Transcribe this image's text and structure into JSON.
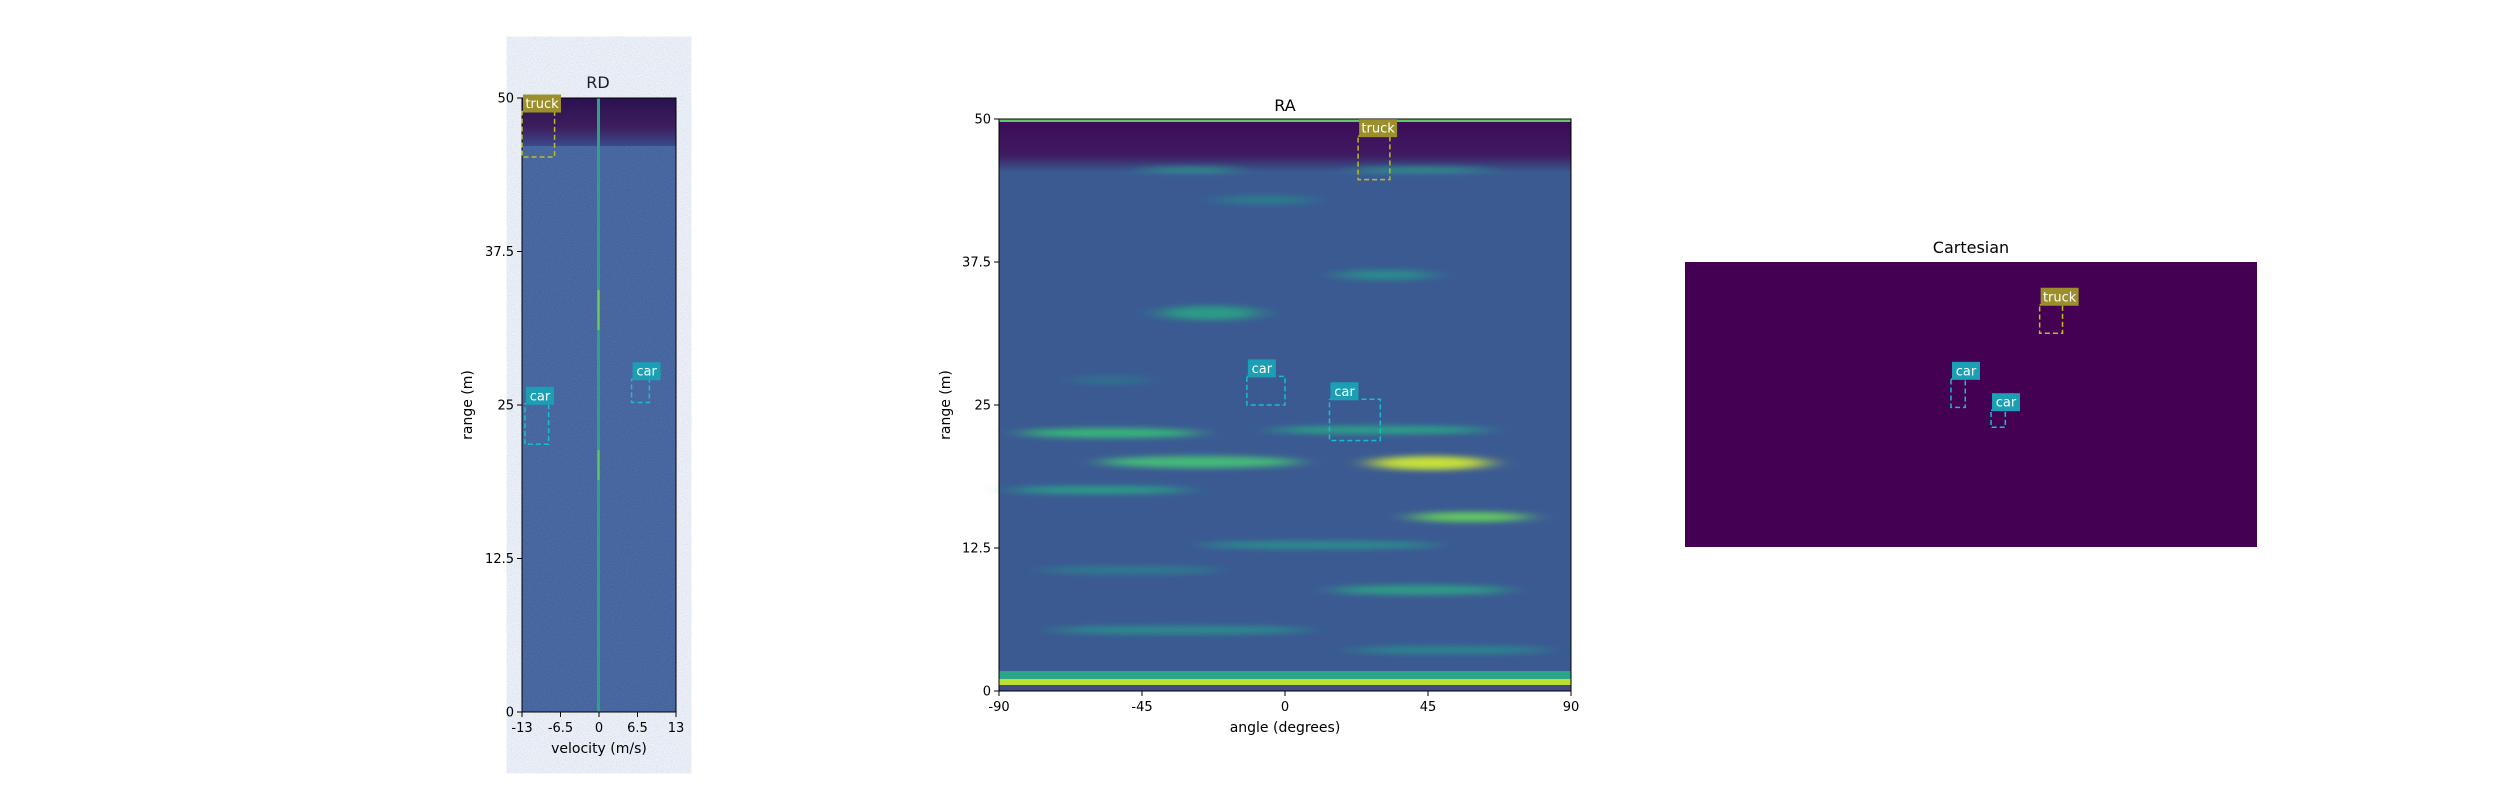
{
  "colors": {
    "viridis_dark": "#440154",
    "viridis_blue": "#3b528b",
    "viridis_teal": "#21918c",
    "viridis_green": "#5ec962",
    "viridis_yellow": "#fde725",
    "car_box": "#17becf",
    "truck_box": "#bcbd22",
    "label_car_bg": "#1a9fb5",
    "label_truck_bg": "#9a8f2a"
  },
  "chart_data": [
    {
      "type": "heatmap",
      "title": "RD",
      "xlabel": "velocity (m/s)",
      "ylabel": "range (m)",
      "xlim": [
        -13,
        13
      ],
      "ylim": [
        0,
        50
      ],
      "xticks": [
        "-13",
        "-6.5",
        "0",
        "6.5",
        "13"
      ],
      "yticks": [
        "0",
        "12.5",
        "25",
        "37.5",
        "50"
      ],
      "boxes": [
        {
          "label": "truck",
          "x0": -13,
          "x1": -7.5,
          "y0": 45.2,
          "y1": 48.9
        },
        {
          "label": "car",
          "x0": -12.5,
          "x1": -8.5,
          "y0": 21.8,
          "y1": 25.1
        },
        {
          "label": "car",
          "x0": 5.5,
          "x1": 8.5,
          "y0": 25.2,
          "y1": 27.1
        }
      ]
    },
    {
      "type": "heatmap",
      "title": "RA",
      "xlabel": "angle (degrees)",
      "ylabel": "range (m)",
      "xlim": [
        -90,
        90
      ],
      "ylim": [
        0,
        50
      ],
      "xticks": [
        "-90",
        "-45",
        "0",
        "45",
        "90"
      ],
      "yticks": [
        "0",
        "12.5",
        "25",
        "37.5",
        "50"
      ],
      "boxes": [
        {
          "label": "truck",
          "x0": 23,
          "x1": 33,
          "y0": 44.7,
          "y1": 48.5
        },
        {
          "label": "car",
          "x0": -12,
          "x1": 0,
          "y0": 25,
          "y1": 27.5
        },
        {
          "label": "car",
          "x0": 14,
          "x1": 30,
          "y0": 21.9,
          "y1": 25.5
        }
      ]
    },
    {
      "type": "heatmap",
      "title": "Cartesian",
      "boxes": [
        {
          "label": "truck",
          "x0": 0.62,
          "x1": 0.66,
          "y0": 0.15,
          "y1": 0.25
        },
        {
          "label": "car",
          "x0": 0.465,
          "x1": 0.49,
          "y0": 0.41,
          "y1": 0.51
        },
        {
          "label": "car",
          "x0": 0.535,
          "x1": 0.56,
          "y0": 0.52,
          "y1": 0.58
        }
      ]
    }
  ]
}
